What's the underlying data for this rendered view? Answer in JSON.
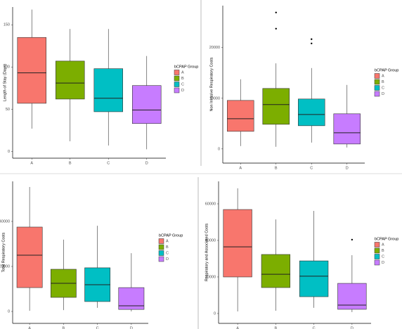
{
  "chart_data": [
    {
      "type": "box",
      "y_label": "Length of Stay (Days)",
      "legend_title": "bCPAP Group",
      "ylim": [
        -8,
        171
      ],
      "yticks": [
        0,
        50,
        100,
        150
      ],
      "boxes": [
        {
          "name": "A",
          "color": "#F8766D",
          "whisker_low": 27,
          "q1": 57,
          "median": 93,
          "q3": 135,
          "whisker_high": 168,
          "outliers": []
        },
        {
          "name": "B",
          "color": "#7CAE00",
          "whisker_low": 12,
          "q1": 62,
          "median": 81,
          "q3": 107,
          "whisker_high": 145,
          "outliers": []
        },
        {
          "name": "C",
          "color": "#00BFC4",
          "whisker_low": 7,
          "q1": 47,
          "median": 63,
          "q3": 98,
          "whisker_high": 145,
          "outliers": []
        },
        {
          "name": "D",
          "color": "#C77CFF",
          "whisker_low": 2.5,
          "q1": 33,
          "median": 49,
          "q3": 78,
          "whisker_high": 113,
          "outliers": []
        }
      ]
    },
    {
      "type": "box",
      "y_label": "Non Invasive Respiratory Costs",
      "legend_title": "bCPAP Group",
      "ylim": [
        -2800,
        28300
      ],
      "yticks": [
        0,
        10000,
        20000
      ],
      "boxes": [
        {
          "name": "A",
          "color": "#F8766D",
          "whisker_low": 560,
          "q1": 3470,
          "median": 5970,
          "q3": 9580,
          "whisker_high": 13750,
          "outliers": []
        },
        {
          "name": "B",
          "color": "#7CAE00",
          "whisker_low": 420,
          "q1": 4860,
          "median": 8750,
          "q3": 11940,
          "whisker_high": 16900,
          "outliers": [
            26940,
            23750
          ]
        },
        {
          "name": "C",
          "color": "#00BFC4",
          "whisker_low": 1250,
          "q1": 4580,
          "median": 6800,
          "q3": 9860,
          "whisker_high": 15970,
          "outliers": [
            21670,
            20830
          ]
        },
        {
          "name": "D",
          "color": "#C77CFF",
          "whisker_low": 280,
          "q1": 970,
          "median": 3190,
          "q3": 6940,
          "whisker_high": 12640,
          "outliers": []
        }
      ]
    },
    {
      "type": "box",
      "y_label": "Total Respiratory Costs",
      "legend_title": "bCPAP Group",
      "ylim": [
        -5300,
        57800
      ],
      "yticks": [
        0,
        20000,
        40000
      ],
      "boxes": [
        {
          "name": "A",
          "color": "#F8766D",
          "whisker_low": 300,
          "q1": 10600,
          "median": 25000,
          "q3": 37500,
          "whisker_high": 55300,
          "outliers": []
        },
        {
          "name": "B",
          "color": "#7CAE00",
          "whisker_low": 600,
          "q1": 6250,
          "median": 12500,
          "q3": 18750,
          "whisker_high": 31900,
          "outliers": []
        },
        {
          "name": "C",
          "color": "#00BFC4",
          "whisker_low": 1600,
          "q1": 4400,
          "median": 11900,
          "q3": 19400,
          "whisker_high": 38100,
          "outliers": []
        },
        {
          "name": "D",
          "color": "#C77CFF",
          "whisker_low": 0,
          "q1": 900,
          "median": 2500,
          "q3": 10600,
          "whisker_high": 25900,
          "outliers": []
        }
      ]
    },
    {
      "type": "box",
      "y_label": "Respiratory and Associated Costs",
      "legend_title": "bCPAP Group",
      "ylim": [
        -5400,
        72300
      ],
      "yticks": [
        0,
        20000,
        40000,
        60000
      ],
      "boxes": [
        {
          "name": "A",
          "color": "#F8766D",
          "whisker_low": 1150,
          "q1": 20000,
          "median": 36500,
          "q3": 56900,
          "whisker_high": 68500,
          "outliers": []
        },
        {
          "name": "B",
          "color": "#7CAE00",
          "whisker_low": 1500,
          "q1": 14200,
          "median": 21500,
          "q3": 32300,
          "whisker_high": 51500,
          "outliers": []
        },
        {
          "name": "C",
          "color": "#00BFC4",
          "whisker_low": 3100,
          "q1": 9200,
          "median": 20400,
          "q3": 28800,
          "whisker_high": 56150,
          "outliers": []
        },
        {
          "name": "D",
          "color": "#C77CFF",
          "whisker_low": 770,
          "q1": 2300,
          "median": 4600,
          "q3": 16500,
          "whisker_high": 31900,
          "outliers": [
            40400
          ]
        }
      ]
    }
  ]
}
